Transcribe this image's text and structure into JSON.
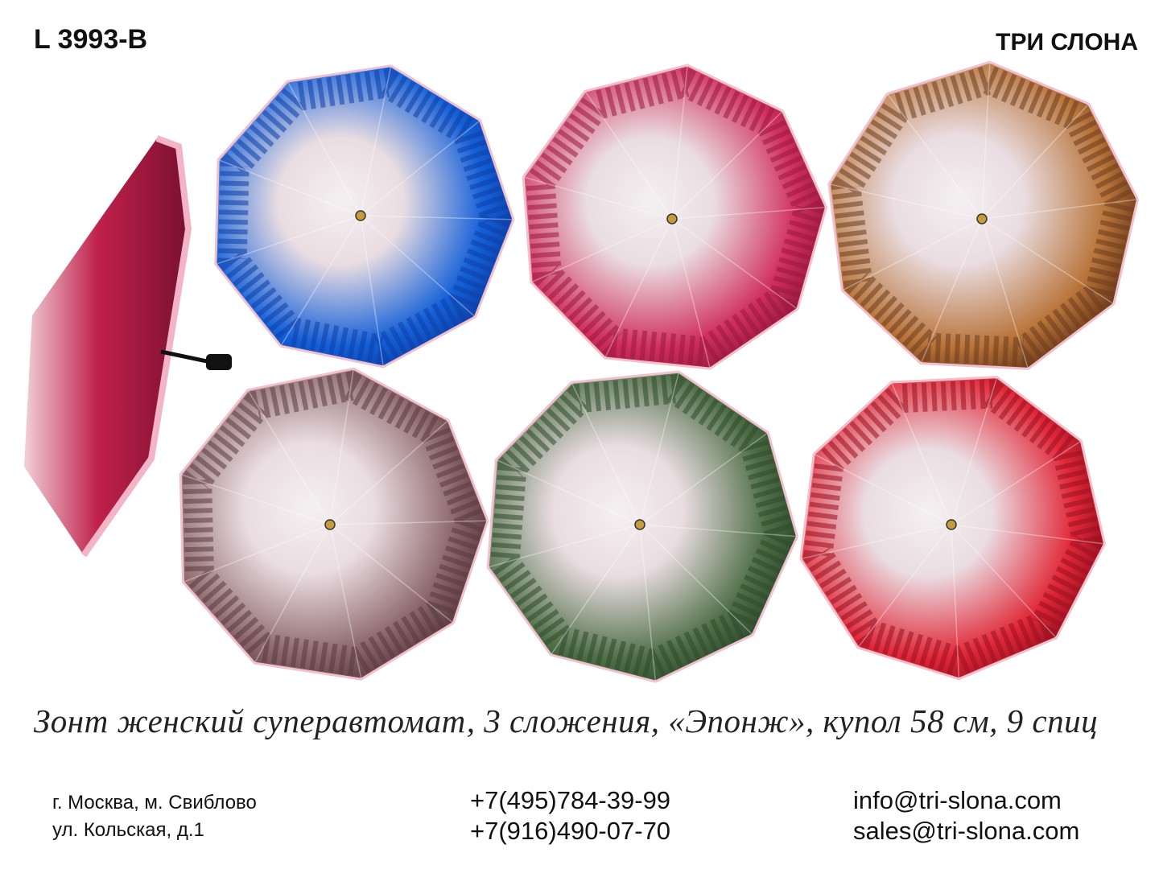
{
  "header": {
    "model": "L 3993-B",
    "brand": "ТРИ СЛОНА"
  },
  "description": "Зонт женский суперавтомат, 3 сложения,  «Эпонж», купол 58 см, 9 спиц",
  "contacts": {
    "address": [
      "г. Москва, м. Свиблово",
      "ул. Кольская, д.1"
    ],
    "phones": [
      "+7(495)784-39-99",
      "+7(916)490-07-70"
    ],
    "emails": [
      "info@tri-slona.com",
      "sales@tri-slona.com"
    ]
  }
}
